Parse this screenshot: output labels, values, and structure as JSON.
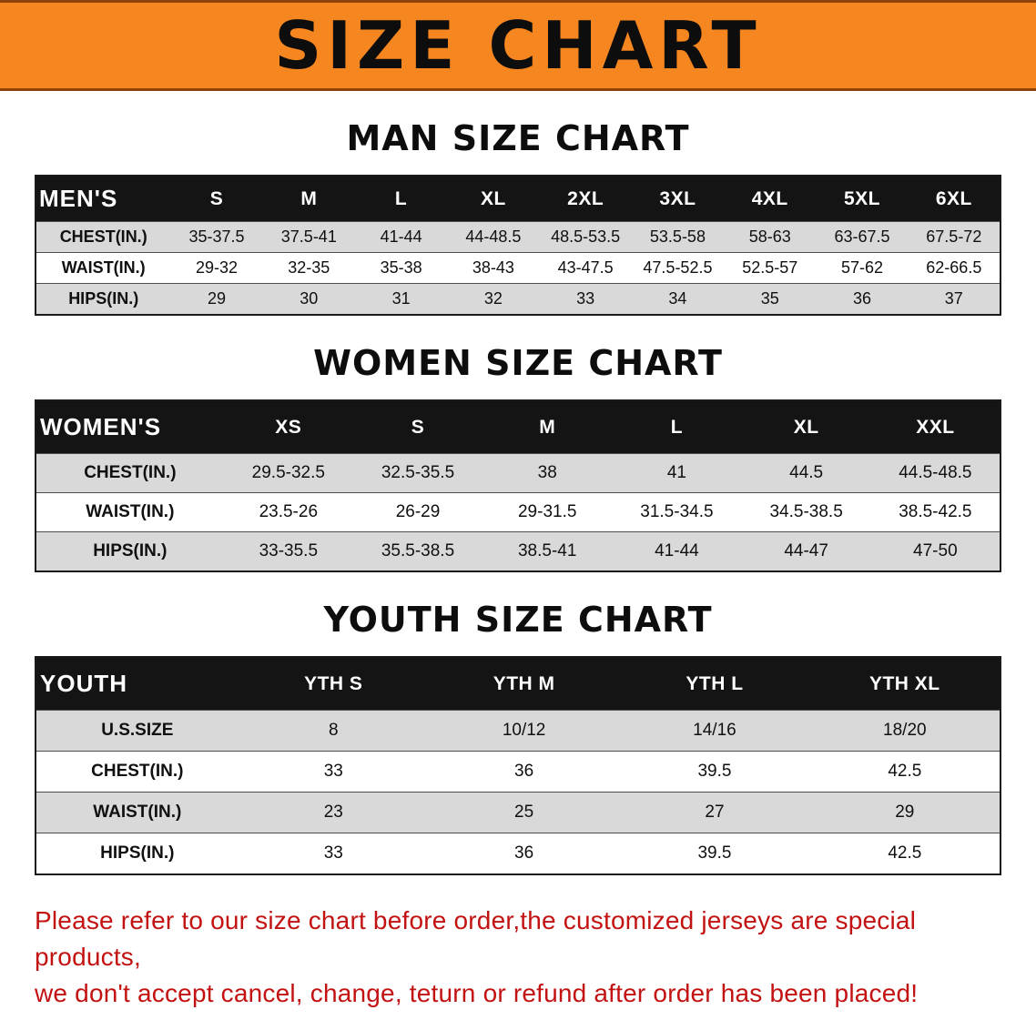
{
  "banner": {
    "title": "SIZE CHART"
  },
  "colors": {
    "banner_bg": "#F6861F",
    "table_header_bg": "#141414",
    "row_shade": "#D9D9D9",
    "notice_red": "#C31212"
  },
  "sections": [
    {
      "heading": "MAN SIZE CHART",
      "table": {
        "header_label": "MEN'S",
        "columns": [
          "S",
          "M",
          "L",
          "XL",
          "2XL",
          "3XL",
          "4XL",
          "5XL",
          "6XL"
        ],
        "rows": [
          {
            "label": "CHEST(IN.)",
            "values": [
              "35-37.5",
              "37.5-41",
              "41-44",
              "44-48.5",
              "48.5-53.5",
              "53.5-58",
              "58-63",
              "63-67.5",
              "67.5-72"
            ]
          },
          {
            "label": "WAIST(IN.)",
            "values": [
              "29-32",
              "32-35",
              "35-38",
              "38-43",
              "43-47.5",
              "47.5-52.5",
              "52.5-57",
              "57-62",
              "62-66.5"
            ]
          },
          {
            "label": "HIPS(IN.)",
            "values": [
              "29",
              "30",
              "31",
              "32",
              "33",
              "34",
              "35",
              "36",
              "37"
            ]
          }
        ]
      }
    },
    {
      "heading": "WOMEN SIZE CHART",
      "table": {
        "header_label": "WOMEN'S",
        "columns": [
          "XS",
          "S",
          "M",
          "L",
          "XL",
          "XXL"
        ],
        "rows": [
          {
            "label": "CHEST(IN.)",
            "values": [
              "29.5-32.5",
              "32.5-35.5",
              "38",
              "41",
              "44.5",
              "44.5-48.5"
            ]
          },
          {
            "label": "WAIST(IN.)",
            "values": [
              "23.5-26",
              "26-29",
              "29-31.5",
              "31.5-34.5",
              "34.5-38.5",
              "38.5-42.5"
            ]
          },
          {
            "label": "HIPS(IN.)",
            "values": [
              "33-35.5",
              "35.5-38.5",
              "38.5-41",
              "41-44",
              "44-47",
              "47-50"
            ]
          }
        ]
      }
    },
    {
      "heading": "YOUTH SIZE CHART",
      "table": {
        "header_label": "YOUTH",
        "columns": [
          "YTH S",
          "YTH M",
          "YTH L",
          "YTH XL"
        ],
        "rows": [
          {
            "label": "U.S.SIZE",
            "values": [
              "8",
              "10/12",
              "14/16",
              "18/20"
            ]
          },
          {
            "label": "CHEST(IN.)",
            "values": [
              "33",
              "36",
              "39.5",
              "42.5"
            ]
          },
          {
            "label": "WAIST(IN.)",
            "values": [
              "23",
              "25",
              "27",
              "29"
            ]
          },
          {
            "label": "HIPS(IN.)",
            "values": [
              "33",
              "36",
              "39.5",
              "42.5"
            ]
          }
        ]
      }
    }
  ],
  "footer": {
    "line1": "Please refer to our size chart before order,the customized jerseys are special products,",
    "line2": "we don't accept cancel, change, teturn or refund after order has been placed!"
  }
}
